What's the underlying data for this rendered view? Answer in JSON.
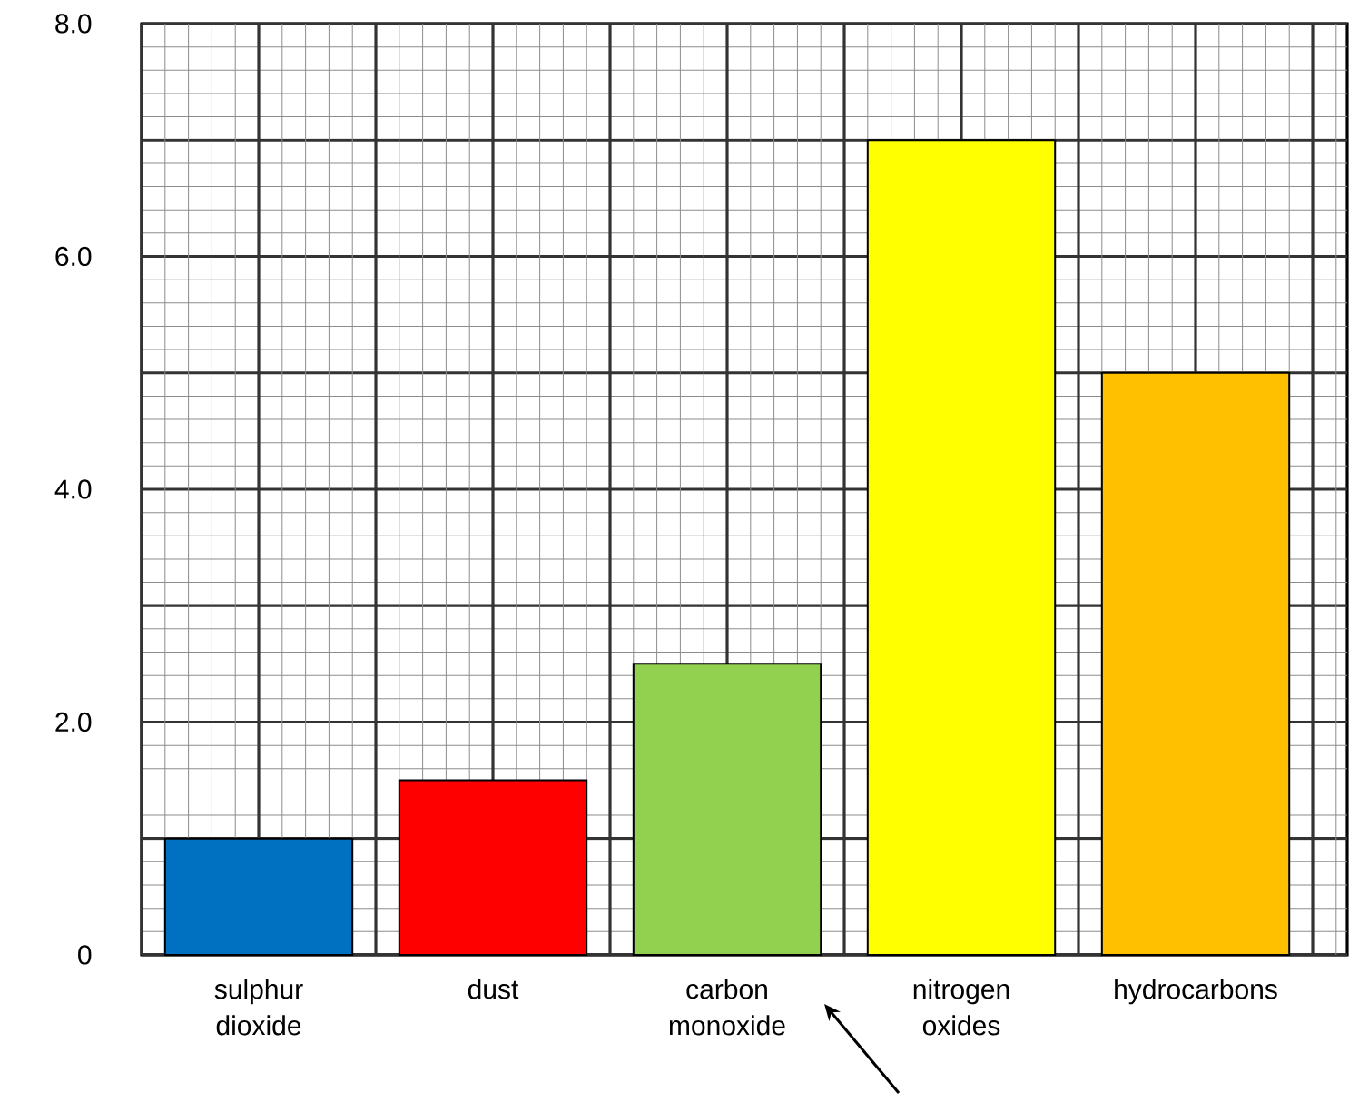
{
  "chart_data": {
    "type": "bar",
    "categories": [
      "sulphur dioxide",
      "dust",
      "carbon monoxide",
      "nitrogen oxides",
      "hydrocarbons"
    ],
    "values": [
      1.0,
      1.5,
      2.5,
      7.0,
      5.0
    ],
    "colors": [
      "#0070c0",
      "#ff0000",
      "#92d050",
      "#ffff00",
      "#ffc000"
    ],
    "ylim": [
      0,
      8
    ],
    "yticks": [
      {
        "value": 0,
        "label": "0"
      },
      {
        "value": 2,
        "label": "2.0"
      },
      {
        "value": 4,
        "label": "4.0"
      },
      {
        "value": 6,
        "label": "6.0"
      },
      {
        "value": 8,
        "label": "8.0"
      }
    ],
    "grid": true
  }
}
